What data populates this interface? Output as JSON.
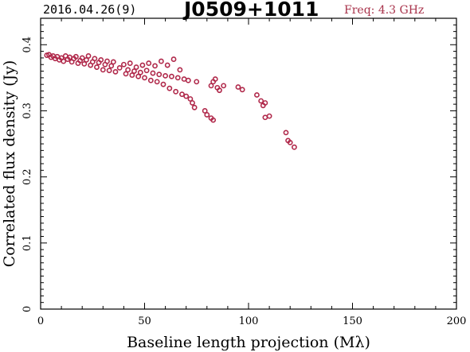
{
  "header": {
    "date": "2016.04.26(9)",
    "source": "J0509+1011",
    "freq": "Freq: 4.3 GHz"
  },
  "colors": {
    "marker": "#b0284a",
    "axis": "#000000",
    "freq_text": "#a8324a"
  },
  "chart_data": {
    "type": "scatter",
    "title": "J0509+1011",
    "xlabel": "Baseline length projection (Mλ)",
    "ylabel": "Correlated flux density (Jy)",
    "xlim": [
      0,
      200
    ],
    "ylim": [
      0,
      0.44
    ],
    "xticks": [
      0,
      50,
      100,
      150,
      200
    ],
    "xtick_labels": [
      "0",
      "50",
      "100",
      "150",
      "200"
    ],
    "yticks": [
      0,
      0.1,
      0.2,
      0.3,
      0.4
    ],
    "ytick_labels": [
      "0",
      "0.1",
      "0.2",
      "0.3",
      "0.4"
    ],
    "grid": false,
    "series": [
      {
        "marker": "open-circle",
        "points": [
          [
            3,
            0.384
          ],
          [
            4,
            0.385
          ],
          [
            5,
            0.381
          ],
          [
            6,
            0.383
          ],
          [
            7,
            0.379
          ],
          [
            8,
            0.382
          ],
          [
            9,
            0.377
          ],
          [
            10,
            0.38
          ],
          [
            11,
            0.375
          ],
          [
            12,
            0.383
          ],
          [
            13,
            0.378
          ],
          [
            14,
            0.381
          ],
          [
            15,
            0.374
          ],
          [
            16,
            0.379
          ],
          [
            17,
            0.382
          ],
          [
            18,
            0.372
          ],
          [
            19,
            0.376
          ],
          [
            20,
            0.38
          ],
          [
            21,
            0.371
          ],
          [
            22,
            0.377
          ],
          [
            23,
            0.383
          ],
          [
            24,
            0.369
          ],
          [
            25,
            0.374
          ],
          [
            26,
            0.379
          ],
          [
            27,
            0.366
          ],
          [
            28,
            0.373
          ],
          [
            29,
            0.377
          ],
          [
            30,
            0.362
          ],
          [
            31,
            0.37
          ],
          [
            32,
            0.375
          ],
          [
            33,
            0.361
          ],
          [
            34,
            0.368
          ],
          [
            35,
            0.374
          ],
          [
            36,
            0.359
          ],
          [
            38,
            0.365
          ],
          [
            40,
            0.37
          ],
          [
            41,
            0.356
          ],
          [
            42,
            0.362
          ],
          [
            43,
            0.372
          ],
          [
            44,
            0.354
          ],
          [
            45,
            0.36
          ],
          [
            46,
            0.366
          ],
          [
            47,
            0.352
          ],
          [
            48,
            0.358
          ],
          [
            49,
            0.369
          ],
          [
            50,
            0.35
          ],
          [
            51,
            0.361
          ],
          [
            52,
            0.372
          ],
          [
            53,
            0.346
          ],
          [
            54,
            0.357
          ],
          [
            55,
            0.368
          ],
          [
            56,
            0.344
          ],
          [
            57,
            0.355
          ],
          [
            58,
            0.375
          ],
          [
            59,
            0.34
          ],
          [
            60,
            0.353
          ],
          [
            61,
            0.369
          ],
          [
            62,
            0.334
          ],
          [
            63,
            0.352
          ],
          [
            64,
            0.378
          ],
          [
            65,
            0.329
          ],
          [
            66,
            0.35
          ],
          [
            67,
            0.362
          ],
          [
            68,
            0.325
          ],
          [
            69,
            0.348
          ],
          [
            70,
            0.322
          ],
          [
            71,
            0.346
          ],
          [
            72,
            0.318
          ],
          [
            73,
            0.312
          ],
          [
            75,
            0.344
          ],
          [
            74,
            0.305
          ],
          [
            79,
            0.3
          ],
          [
            80,
            0.294
          ],
          [
            82,
            0.289
          ],
          [
            83,
            0.286
          ],
          [
            82,
            0.338
          ],
          [
            83,
            0.344
          ],
          [
            84,
            0.348
          ],
          [
            85,
            0.335
          ],
          [
            86,
            0.331
          ],
          [
            88,
            0.338
          ],
          [
            95,
            0.336
          ],
          [
            97,
            0.332
          ],
          [
            104,
            0.324
          ],
          [
            106,
            0.315
          ],
          [
            107,
            0.308
          ],
          [
            108,
            0.312
          ],
          [
            108,
            0.29
          ],
          [
            110,
            0.292
          ],
          [
            118,
            0.267
          ],
          [
            119,
            0.255
          ],
          [
            120,
            0.252
          ],
          [
            122,
            0.245
          ]
        ]
      }
    ]
  }
}
